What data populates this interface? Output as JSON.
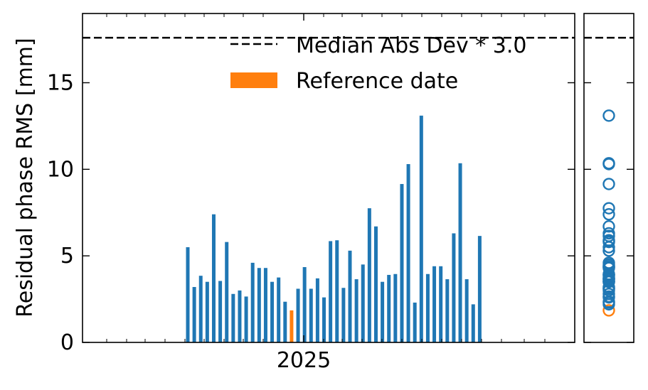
{
  "chart_data": {
    "type": "bar",
    "ylabel": "Residual phase RMS [mm]",
    "ylim": [
      0,
      19
    ],
    "yticks": [
      0,
      5,
      10,
      15
    ],
    "x_tick_labels": [
      "2025"
    ],
    "threshold": {
      "label": "Median Abs Dev * 3.0",
      "value": 17.6
    },
    "reference_label": "Reference date",
    "colors": {
      "bar": "#1f77b4",
      "reference": "#ff7f0e",
      "threshold": "#000000"
    },
    "bars": [
      {
        "value": 5.5
      },
      {
        "value": 3.2
      },
      {
        "value": 3.85
      },
      {
        "value": 3.5
      },
      {
        "value": 7.4
      },
      {
        "value": 3.55
      },
      {
        "value": 5.8
      },
      {
        "value": 2.8
      },
      {
        "value": 3.0
      },
      {
        "value": 2.65
      },
      {
        "value": 4.6
      },
      {
        "value": 4.3
      },
      {
        "value": 4.3
      },
      {
        "value": 3.5
      },
      {
        "value": 3.75
      },
      {
        "value": 2.35
      },
      {
        "value": 1.85,
        "reference": true
      },
      {
        "value": 3.1
      },
      {
        "value": 4.35
      },
      {
        "value": 3.1
      },
      {
        "value": 3.7
      },
      {
        "value": 2.6
      },
      {
        "value": 5.85
      },
      {
        "value": 5.9
      },
      {
        "value": 3.15
      },
      {
        "value": 5.3
      },
      {
        "value": 3.65
      },
      {
        "value": 4.5
      },
      {
        "value": 7.75
      },
      {
        "value": 6.7
      },
      {
        "value": 3.5
      },
      {
        "value": 3.9
      },
      {
        "value": 3.95
      },
      {
        "value": 9.15
      },
      {
        "value": 10.3
      },
      {
        "value": 2.3
      },
      {
        "value": 13.1
      },
      {
        "value": 3.95
      },
      {
        "value": 4.4
      },
      {
        "value": 4.4
      },
      {
        "value": 3.65
      },
      {
        "value": 6.3
      },
      {
        "value": 10.35
      },
      {
        "value": 3.65
      },
      {
        "value": 2.2
      },
      {
        "value": 6.15
      }
    ]
  }
}
